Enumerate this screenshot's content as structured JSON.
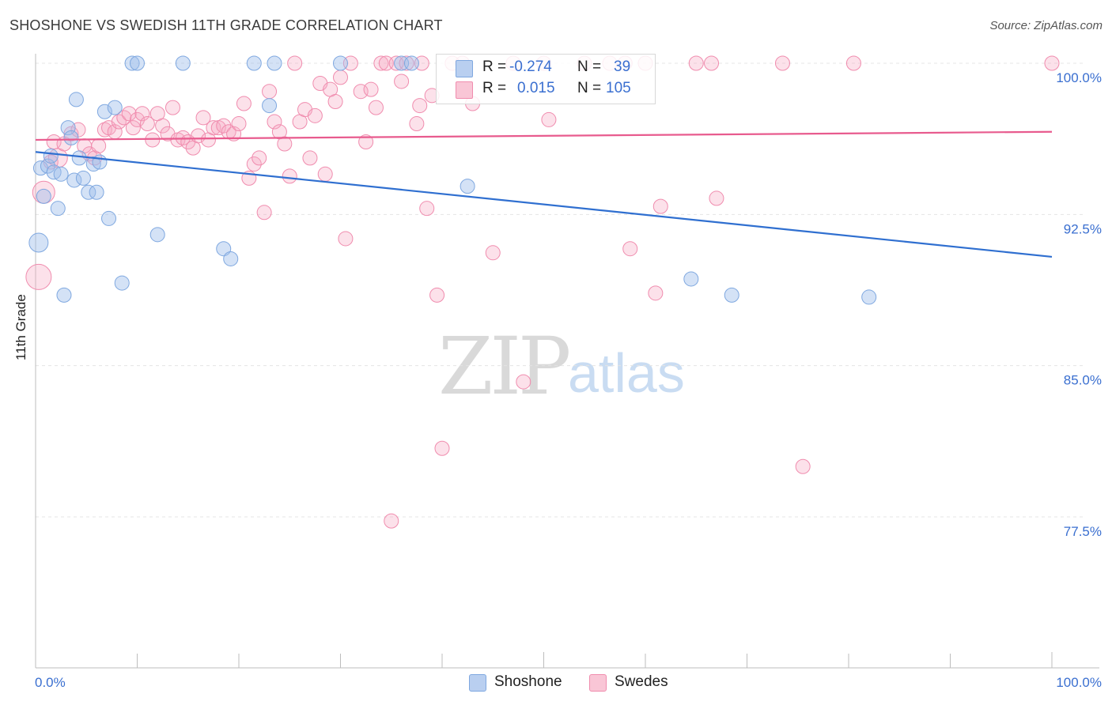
{
  "title": "SHOSHONE VS SWEDISH 11TH GRADE CORRELATION CHART",
  "source": "Source: ZipAtlas.com",
  "watermark": {
    "zip": "ZIP",
    "atlas": "atlas"
  },
  "colors": {
    "shoshone": "#7fa8e0",
    "shoshone_line": "#2f6fd0",
    "swedes": "#f08cae",
    "swedes_line": "#e85b8e",
    "axis_text": "#3a6fd0"
  },
  "legend": {
    "rows": [
      {
        "r_label": "R =",
        "r_value": "-0.274",
        "n_label": "N =",
        "n_value": "39"
      },
      {
        "r_label": "R =",
        "r_value": "0.015",
        "n_label": "N =",
        "n_value": "105"
      }
    ]
  },
  "bottom_legend": {
    "shoshone": "Shoshone",
    "swedes": "Swedes"
  },
  "chart_data": {
    "type": "scatter",
    "title": "SHOSHONE VS SWEDISH 11TH GRADE CORRELATION CHART",
    "ylabel": "11th Grade",
    "xlabel": "",
    "xlim": [
      0,
      100
    ],
    "ylim": [
      70,
      100.5
    ],
    "x_tick_labels": [
      "0.0%",
      "100.0%"
    ],
    "y_ticks": [
      77.5,
      85.0,
      92.5,
      100.0
    ],
    "y_tick_labels": [
      "77.5%",
      "85.0%",
      "92.5%",
      "100.0%"
    ],
    "grid": true,
    "series": [
      {
        "name": "Shoshone",
        "trend": {
          "x": [
            0,
            100
          ],
          "y": [
            95.6,
            90.4
          ]
        },
        "points": [
          [
            0.3,
            91.1,
            12
          ],
          [
            0.5,
            94.8,
            9
          ],
          [
            0.8,
            93.4,
            9
          ],
          [
            1.2,
            94.9,
            9
          ],
          [
            1.5,
            95.4,
            9
          ],
          [
            1.8,
            94.6,
            9
          ],
          [
            2.2,
            92.8,
            9
          ],
          [
            2.5,
            94.5,
            9
          ],
          [
            2.8,
            88.5,
            9
          ],
          [
            3.2,
            96.8,
            9
          ],
          [
            3.5,
            96.3,
            9
          ],
          [
            3.8,
            94.2,
            9
          ],
          [
            4.0,
            98.2,
            9
          ],
          [
            4.3,
            95.3,
            9
          ],
          [
            4.7,
            94.3,
            9
          ],
          [
            5.2,
            93.6,
            9
          ],
          [
            5.7,
            95.0,
            9
          ],
          [
            6.0,
            93.6,
            9
          ],
          [
            6.3,
            95.1,
            9
          ],
          [
            6.8,
            97.6,
            9
          ],
          [
            7.2,
            92.3,
            9
          ],
          [
            7.8,
            97.8,
            9
          ],
          [
            8.5,
            89.1,
            9
          ],
          [
            9.5,
            100.0,
            9
          ],
          [
            10.0,
            100.0,
            9
          ],
          [
            12.0,
            91.5,
            9
          ],
          [
            14.5,
            100.0,
            9
          ],
          [
            18.5,
            90.8,
            9
          ],
          [
            19.2,
            90.3,
            9
          ],
          [
            21.5,
            100.0,
            9
          ],
          [
            23.0,
            97.9,
            9
          ],
          [
            23.5,
            100.0,
            9
          ],
          [
            30.0,
            100.0,
            9
          ],
          [
            36.0,
            100.0,
            9
          ],
          [
            37.0,
            100.0,
            9
          ],
          [
            42.5,
            93.9,
            9
          ],
          [
            64.5,
            89.3,
            9
          ],
          [
            68.5,
            88.5,
            9
          ],
          [
            82.0,
            88.4,
            9
          ]
        ]
      },
      {
        "name": "Swedes",
        "trend": {
          "x": [
            0,
            100
          ],
          "y": [
            96.2,
            96.6
          ]
        },
        "points": [
          [
            0.3,
            89.4,
            16
          ],
          [
            0.8,
            93.6,
            14
          ],
          [
            1.5,
            95.1,
            9
          ],
          [
            1.8,
            96.1,
            9
          ],
          [
            2.2,
            95.3,
            12
          ],
          [
            2.8,
            96.0,
            9
          ],
          [
            3.5,
            96.5,
            9
          ],
          [
            4.2,
            96.7,
            9
          ],
          [
            4.8,
            95.9,
            9
          ],
          [
            5.3,
            95.5,
            9
          ],
          [
            5.8,
            95.3,
            9
          ],
          [
            6.2,
            95.9,
            9
          ],
          [
            6.8,
            96.7,
            9
          ],
          [
            7.2,
            96.8,
            9
          ],
          [
            7.8,
            96.6,
            9
          ],
          [
            8.2,
            97.1,
            9
          ],
          [
            8.7,
            97.3,
            9
          ],
          [
            9.2,
            97.5,
            9
          ],
          [
            9.6,
            96.8,
            9
          ],
          [
            10.0,
            97.2,
            9
          ],
          [
            10.5,
            97.5,
            9
          ],
          [
            11.0,
            97.0,
            9
          ],
          [
            11.5,
            96.2,
            9
          ],
          [
            12.0,
            97.5,
            9
          ],
          [
            12.5,
            96.9,
            9
          ],
          [
            13.0,
            96.5,
            9
          ],
          [
            13.5,
            97.8,
            9
          ],
          [
            14.0,
            96.2,
            9
          ],
          [
            14.5,
            96.3,
            9
          ],
          [
            15.0,
            96.1,
            9
          ],
          [
            15.5,
            95.8,
            9
          ],
          [
            16.0,
            96.4,
            9
          ],
          [
            16.5,
            97.3,
            9
          ],
          [
            17.0,
            96.2,
            9
          ],
          [
            17.5,
            96.8,
            9
          ],
          [
            18.0,
            96.8,
            9
          ],
          [
            18.5,
            96.9,
            9
          ],
          [
            19.0,
            96.6,
            9
          ],
          [
            19.5,
            96.5,
            9
          ],
          [
            20.0,
            97.0,
            9
          ],
          [
            20.5,
            98.0,
            9
          ],
          [
            21.0,
            94.3,
            9
          ],
          [
            21.5,
            95.0,
            9
          ],
          [
            22.0,
            95.3,
            9
          ],
          [
            22.5,
            92.6,
            9
          ],
          [
            23.0,
            98.6,
            9
          ],
          [
            23.5,
            97.1,
            9
          ],
          [
            24.0,
            96.6,
            9
          ],
          [
            24.5,
            96.0,
            9
          ],
          [
            25.0,
            94.4,
            9
          ],
          [
            25.5,
            100.0,
            9
          ],
          [
            26.0,
            97.1,
            9
          ],
          [
            26.5,
            97.7,
            9
          ],
          [
            27.0,
            95.3,
            9
          ],
          [
            27.5,
            97.4,
            9
          ],
          [
            28.0,
            99.0,
            9
          ],
          [
            28.5,
            94.5,
            9
          ],
          [
            29.0,
            98.7,
            9
          ],
          [
            29.5,
            98.1,
            9
          ],
          [
            30.0,
            99.3,
            9
          ],
          [
            30.5,
            91.3,
            9
          ],
          [
            31.0,
            100.0,
            9
          ],
          [
            32.0,
            98.6,
            9
          ],
          [
            32.5,
            96.1,
            9
          ],
          [
            33.0,
            98.7,
            9
          ],
          [
            33.5,
            97.8,
            9
          ],
          [
            34.0,
            100.0,
            9
          ],
          [
            34.5,
            100.0,
            9
          ],
          [
            35.0,
            77.3,
            9
          ],
          [
            35.5,
            100.0,
            9
          ],
          [
            36.0,
            99.1,
            9
          ],
          [
            36.5,
            100.0,
            9
          ],
          [
            37.5,
            97.0,
            9
          ],
          [
            37.8,
            97.9,
            9
          ],
          [
            38.0,
            100.0,
            9
          ],
          [
            38.5,
            92.8,
            9
          ],
          [
            39.0,
            98.4,
            9
          ],
          [
            39.5,
            88.5,
            9
          ],
          [
            40.0,
            80.9,
            9
          ],
          [
            41.0,
            100.0,
            9
          ],
          [
            42.0,
            100.0,
            9
          ],
          [
            43.0,
            98.0,
            9
          ],
          [
            45.0,
            90.6,
            9
          ],
          [
            47.0,
            100.0,
            9
          ],
          [
            48.0,
            84.2,
            9
          ],
          [
            50.0,
            100.0,
            9
          ],
          [
            50.5,
            97.2,
            9
          ],
          [
            54.0,
            100.0,
            9
          ],
          [
            56.5,
            100.0,
            9
          ],
          [
            58.0,
            100.0,
            9
          ],
          [
            58.5,
            90.8,
            9
          ],
          [
            60.0,
            100.0,
            9
          ],
          [
            61.0,
            88.6,
            9
          ],
          [
            61.5,
            92.9,
            9
          ],
          [
            65.0,
            100.0,
            9
          ],
          [
            66.5,
            100.0,
            9
          ],
          [
            67.0,
            93.3,
            9
          ],
          [
            73.5,
            100.0,
            9
          ],
          [
            75.5,
            80.0,
            9
          ],
          [
            80.5,
            100.0,
            9
          ],
          [
            100.0,
            100.0,
            9
          ]
        ]
      }
    ]
  }
}
